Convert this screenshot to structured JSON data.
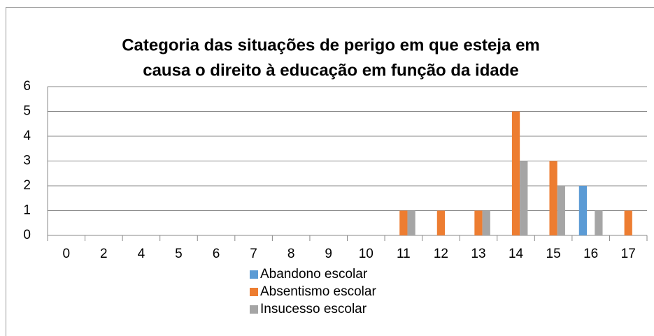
{
  "chart_data": {
    "type": "bar",
    "title": [
      "Categoria das situações de perigo em que esteja em",
      "causa o direito à educação em função da idade"
    ],
    "categories": [
      "0",
      "2",
      "4",
      "5",
      "6",
      "7",
      "8",
      "9",
      "10",
      "11",
      "12",
      "13",
      "14",
      "15",
      "16",
      "17"
    ],
    "series": [
      {
        "name": "Abandono escolar",
        "color": "#5b9bd5",
        "values": [
          0,
          0,
          0,
          0,
          0,
          0,
          0,
          0,
          0,
          0,
          0,
          0,
          0,
          0,
          2,
          0
        ]
      },
      {
        "name": "Absentismo escolar",
        "color": "#ed7d31",
        "values": [
          0,
          0,
          0,
          0,
          0,
          0,
          0,
          0,
          0,
          1,
          1,
          1,
          5,
          3,
          0,
          1
        ]
      },
      {
        "name": "Insucesso escolar",
        "color": "#a5a5a5",
        "values": [
          0,
          0,
          0,
          0,
          0,
          0,
          0,
          0,
          0,
          1,
          0,
          1,
          3,
          2,
          1,
          0
        ]
      }
    ],
    "ylim": [
      0,
      6
    ],
    "yticks": [
      0,
      1,
      2,
      3,
      4,
      5,
      6
    ],
    "grid": true,
    "legend": "bottom"
  }
}
